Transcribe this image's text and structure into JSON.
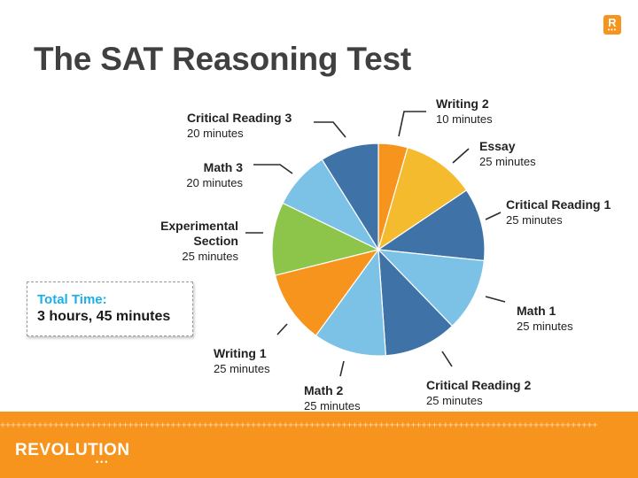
{
  "title": "The SAT Reasoning Test",
  "logo": {
    "letter": "R",
    "dots": "•••",
    "brand": "REVOLUTION",
    "brand_dots": "•••"
  },
  "footer_pattern": "++++++++++++++++++++++++++++++++++++++++++++++++++++++++++++++++++++++++++++++++++++++++++++++++++++++++++++++++",
  "total_box": {
    "label": "Total Time:",
    "value": "3 hours, 45 minutes"
  },
  "colors": {
    "orange": "#f7941d",
    "yellow": "#f4bb2f",
    "dark_blue": "#3f73a8",
    "light_blue": "#7cc1e6",
    "green": "#8dc54b",
    "accent_cyan": "#1ab0e8"
  },
  "chart_data": {
    "type": "pie",
    "title": "",
    "start_angle_deg": 0,
    "slices": [
      {
        "name": "Writing 2",
        "duration": "10 minutes",
        "value": 10,
        "color": "#f7941d"
      },
      {
        "name": "Essay",
        "duration": "25 minutes",
        "value": 25,
        "color": "#f4bb2f"
      },
      {
        "name": "Critical Reading 1",
        "duration": "25 minutes",
        "value": 25,
        "color": "#3f73a8"
      },
      {
        "name": "Math 1",
        "duration": "25 minutes",
        "value": 25,
        "color": "#7cc1e6"
      },
      {
        "name": "Critical Reading 2",
        "duration": "25 minutes",
        "value": 25,
        "color": "#3f73a8"
      },
      {
        "name": "Math 2",
        "duration": "25 minutes",
        "value": 25,
        "color": "#7cc1e6"
      },
      {
        "name": "Writing 1",
        "duration": "25 minutes",
        "value": 25,
        "color": "#f7941d"
      },
      {
        "name": "Experimental Section",
        "duration": "25 minutes",
        "value": 25,
        "color": "#8dc54b"
      },
      {
        "name": "Math 3",
        "duration": "20 minutes",
        "value": 20,
        "color": "#7cc1e6"
      },
      {
        "name": "Critical Reading 3",
        "duration": "20 minutes",
        "value": 20,
        "color": "#3f73a8"
      }
    ]
  }
}
